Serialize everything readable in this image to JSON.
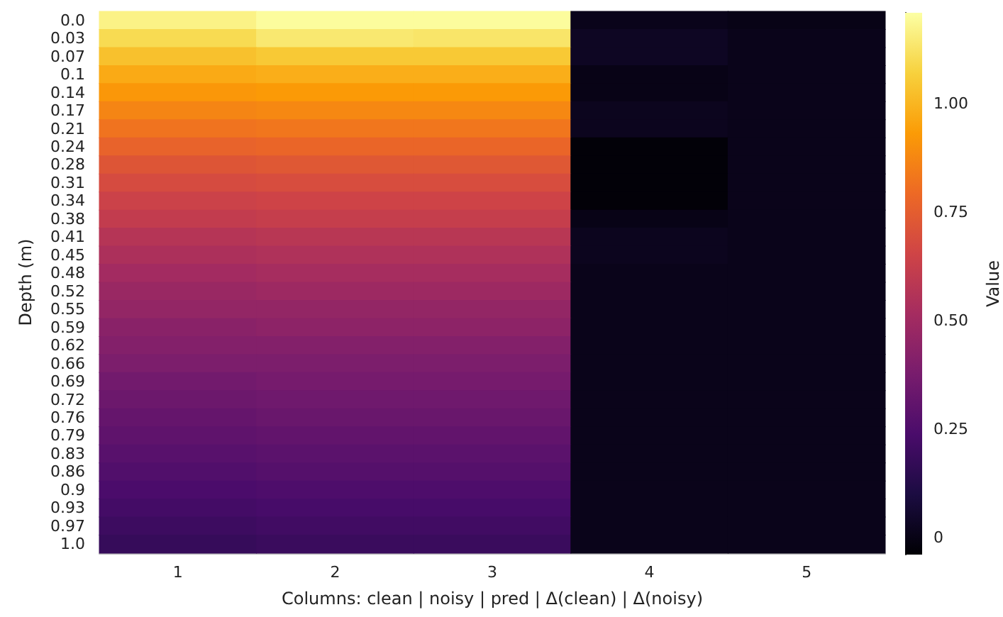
{
  "chart_data": {
    "type": "heatmap",
    "xlabel": "Columns: clean | noisy | pred | Δ(clean) | Δ(noisy)",
    "ylabel": "Depth (m)",
    "clabel": "Value",
    "categories": [
      "1",
      "2",
      "3",
      "4",
      "5"
    ],
    "y_categories": [
      "0.0",
      "0.03",
      "0.07",
      "0.1",
      "0.14",
      "0.17",
      "0.21",
      "0.24",
      "0.28",
      "0.31",
      "0.34",
      "0.38",
      "0.41",
      "0.45",
      "0.48",
      "0.52",
      "0.55",
      "0.59",
      "0.62",
      "0.66",
      "0.69",
      "0.72",
      "0.76",
      "0.79",
      "0.83",
      "0.86",
      "0.9",
      "0.93",
      "0.97",
      "1.0"
    ],
    "cells": [
      [
        1.17,
        1.2,
        1.2,
        0.01,
        0.0
      ],
      [
        1.1,
        1.14,
        1.13,
        0.03,
        0.01
      ],
      [
        1.03,
        1.05,
        1.05,
        0.03,
        0.01
      ],
      [
        0.97,
        0.98,
        0.98,
        0.0,
        0.01
      ],
      [
        0.92,
        0.93,
        0.93,
        0.0,
        0.01
      ],
      [
        0.87,
        0.88,
        0.88,
        0.02,
        0.01
      ],
      [
        0.82,
        0.83,
        0.83,
        0.02,
        0.01
      ],
      [
        0.77,
        0.78,
        0.78,
        -0.03,
        0.01
      ],
      [
        0.72,
        0.73,
        0.73,
        -0.03,
        0.01
      ],
      [
        0.68,
        0.69,
        0.69,
        -0.03,
        0.01
      ],
      [
        0.64,
        0.65,
        0.65,
        -0.03,
        0.01
      ],
      [
        0.61,
        0.62,
        0.62,
        0.0,
        0.01
      ],
      [
        0.57,
        0.58,
        0.58,
        0.02,
        0.01
      ],
      [
        0.54,
        0.55,
        0.55,
        0.02,
        0.01
      ],
      [
        0.51,
        0.52,
        0.52,
        0.01,
        0.01
      ],
      [
        0.48,
        0.49,
        0.49,
        0.01,
        0.01
      ],
      [
        0.46,
        0.46,
        0.46,
        0.01,
        0.01
      ],
      [
        0.43,
        0.44,
        0.44,
        0.01,
        0.01
      ],
      [
        0.41,
        0.41,
        0.41,
        0.01,
        0.01
      ],
      [
        0.39,
        0.39,
        0.39,
        0.01,
        0.01
      ],
      [
        0.36,
        0.37,
        0.37,
        0.01,
        0.01
      ],
      [
        0.34,
        0.35,
        0.35,
        0.01,
        0.01
      ],
      [
        0.32,
        0.33,
        0.33,
        0.01,
        0.01
      ],
      [
        0.3,
        0.31,
        0.31,
        0.01,
        0.01
      ],
      [
        0.28,
        0.29,
        0.29,
        0.01,
        0.01
      ],
      [
        0.26,
        0.27,
        0.27,
        0.01,
        0.01
      ],
      [
        0.24,
        0.25,
        0.25,
        0.01,
        0.01
      ],
      [
        0.22,
        0.23,
        0.23,
        0.01,
        0.01
      ],
      [
        0.2,
        0.21,
        0.21,
        0.01,
        0.01
      ],
      [
        0.18,
        0.19,
        0.19,
        0.01,
        0.01
      ]
    ],
    "clim": [
      -0.04,
      1.21
    ],
    "cticks": [
      {
        "value": 0,
        "label": "0"
      },
      {
        "value": 0.25,
        "label": "0.25"
      },
      {
        "value": 0.5,
        "label": "0.50"
      },
      {
        "value": 0.75,
        "label": "0.75"
      },
      {
        "value": 1,
        "label": "1.00"
      }
    ]
  }
}
